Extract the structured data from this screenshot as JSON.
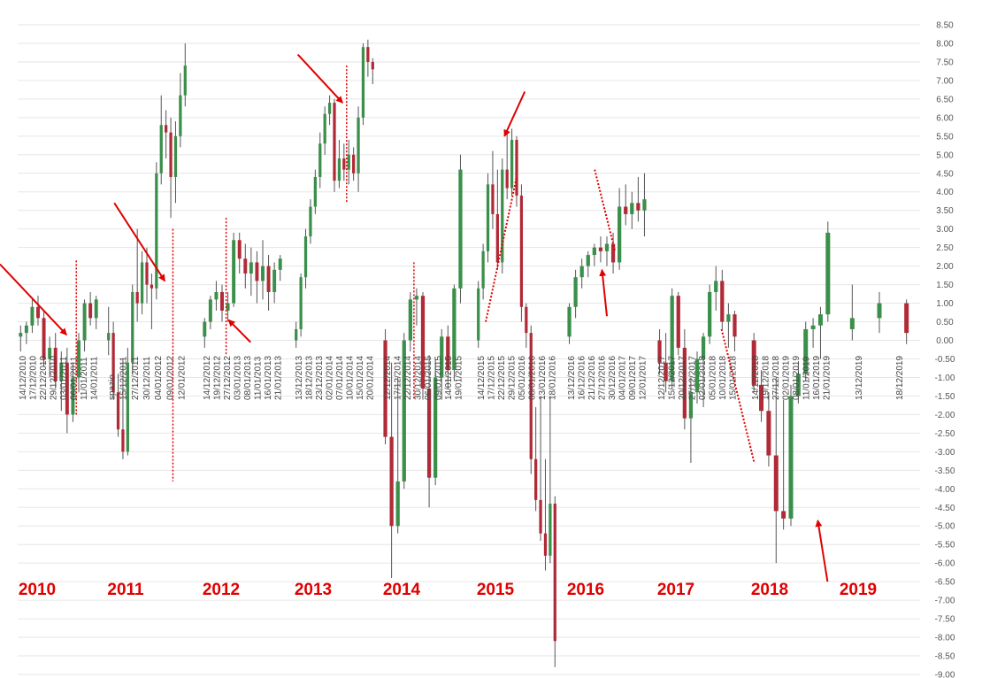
{
  "colors": {
    "up": "#3a8f4a",
    "down": "#b02a37",
    "wick": "#555555",
    "grid": "#e6e6e6",
    "annotation": "#e00000"
  },
  "chart_data": {
    "type": "candlestick",
    "ylim": [
      -9,
      8.5
    ],
    "y_step": 0.5,
    "grid": true,
    "y_axis_position": "right",
    "y_ticks": [
      "8.50",
      "8.00",
      "7.50",
      "7.00",
      "6.50",
      "6.00",
      "5.50",
      "5.00",
      "4.50",
      "4.00",
      "3.50",
      "3.00",
      "2.50",
      "2.00",
      "1.50",
      "1.00",
      "0.50",
      "0.00",
      "-0.50",
      "-1.00",
      "-1.50",
      "-2.00",
      "-2.50",
      "-3.00",
      "-3.50",
      "-4.00",
      "-4.50",
      "-5.00",
      "-5.50",
      "-6.00",
      "-6.50",
      "-7.00",
      "-7.50",
      "-8.00",
      "-8.50",
      "-9.00"
    ],
    "years": [
      {
        "label": "2010",
        "candles": [
          [
            0.1,
            0.4,
            -0.3,
            0.2
          ],
          [
            0.2,
            0.5,
            -0.1,
            0.4
          ],
          [
            0.4,
            1.1,
            0.2,
            0.9
          ],
          [
            0.9,
            1.2,
            0.4,
            0.6
          ],
          [
            0.6,
            0.8,
            -0.7,
            -0.5
          ],
          [
            -0.5,
            0.1,
            -1.0,
            -0.2
          ],
          [
            -0.2,
            0.2,
            -1.3,
            -1.1
          ],
          [
            -1.1,
            -0.3,
            -1.9,
            -0.6
          ],
          [
            -0.6,
            -0.2,
            -2.5,
            -2.0
          ],
          [
            -2.0,
            -0.6,
            -2.2,
            -1.0
          ],
          [
            -1.0,
            0.2,
            -1.4,
            0.0
          ],
          [
            0.0,
            1.1,
            -0.3,
            1.0
          ],
          [
            1.0,
            1.3,
            0.4,
            0.6
          ],
          [
            0.6,
            1.2,
            0.3,
            1.1
          ]
        ],
        "xlabels": [
          "14/12/2010",
          "17/12/2010",
          "22/12/2010",
          "29/12/2010",
          "03/01/2011",
          "06/01/2011",
          "11/01/2011",
          "14/01/2011"
        ]
      },
      {
        "label": "2011",
        "candles": [
          [
            0.0,
            0.9,
            -0.4,
            0.2
          ],
          [
            0.2,
            0.5,
            -1.6,
            -1.4
          ],
          [
            -1.4,
            -0.9,
            -2.6,
            -2.4
          ],
          [
            -2.4,
            -0.5,
            -3.2,
            -3.0
          ],
          [
            -3.0,
            -0.2,
            -3.1,
            -0.6
          ],
          [
            -0.6,
            1.5,
            -0.9,
            1.3
          ],
          [
            1.3,
            3.0,
            0.5,
            1.0
          ],
          [
            1.0,
            2.4,
            0.7,
            2.1
          ],
          [
            2.1,
            2.5,
            1.0,
            1.5
          ],
          [
            1.5,
            1.8,
            0.3,
            1.4
          ],
          [
            1.4,
            4.8,
            1.1,
            4.5
          ],
          [
            4.5,
            6.6,
            4.2,
            5.8
          ],
          [
            5.8,
            6.2,
            4.9,
            5.6
          ],
          [
            5.6,
            6.0,
            3.3,
            4.4
          ],
          [
            4.4,
            5.9,
            3.7,
            5.5
          ],
          [
            5.5,
            7.2,
            5.2,
            6.6
          ],
          [
            6.6,
            8.0,
            6.3,
            7.4
          ]
        ],
        "xlabels": [
          "spazio",
          "15/12/2011",
          "27/12/2011",
          "30/12/2011",
          "04/01/2012",
          "09/01/2012",
          "12/01/2012"
        ]
      },
      {
        "label": "2012",
        "candles": [
          [
            0.1,
            0.6,
            -0.2,
            0.5
          ],
          [
            0.5,
            1.2,
            0.3,
            1.1
          ],
          [
            1.1,
            1.6,
            0.8,
            1.3
          ],
          [
            1.3,
            1.5,
            0.5,
            0.8
          ],
          [
            0.8,
            1.3,
            0.5,
            1.0
          ],
          [
            1.0,
            2.9,
            0.9,
            2.7
          ],
          [
            2.7,
            2.9,
            1.8,
            2.2
          ],
          [
            2.2,
            2.6,
            1.4,
            1.8
          ],
          [
            1.8,
            2.5,
            1.2,
            2.1
          ],
          [
            2.1,
            2.4,
            1.0,
            1.6
          ],
          [
            1.6,
            2.7,
            1.1,
            2.0
          ],
          [
            2.0,
            2.3,
            0.8,
            1.3
          ],
          [
            1.3,
            2.1,
            1.0,
            1.9
          ],
          [
            1.9,
            2.3,
            1.6,
            2.2
          ]
        ],
        "xlabels": [
          "14/12/2012",
          "19/12/2012",
          "27/12/2012",
          "03/01/2013",
          "08/01/2013",
          "11/01/2013",
          "16/01/2013",
          "21/01/2013"
        ]
      },
      {
        "label": "2013",
        "candles": [
          [
            0.0,
            0.5,
            -0.2,
            0.3
          ],
          [
            0.3,
            1.8,
            0.1,
            1.7
          ],
          [
            1.7,
            3.0,
            1.4,
            2.8
          ],
          [
            2.8,
            3.8,
            2.6,
            3.6
          ],
          [
            3.6,
            4.6,
            3.4,
            4.4
          ],
          [
            4.4,
            5.6,
            4.1,
            5.3
          ],
          [
            5.3,
            6.3,
            5.0,
            6.1
          ],
          [
            6.1,
            6.6,
            5.8,
            6.4
          ],
          [
            6.4,
            6.5,
            4.0,
            4.3
          ],
          [
            4.3,
            5.4,
            4.1,
            4.9
          ],
          [
            4.9,
            5.3,
            4.3,
            4.6
          ],
          [
            4.6,
            5.4,
            4.2,
            5.0
          ],
          [
            5.0,
            5.2,
            4.3,
            4.5
          ],
          [
            4.5,
            6.3,
            4.0,
            6.0
          ],
          [
            6.0,
            8.0,
            5.8,
            7.9
          ],
          [
            7.9,
            8.1,
            7.1,
            7.5
          ],
          [
            7.5,
            7.6,
            6.9,
            7.3
          ]
        ],
        "xlabels": [
          "13/12/2013",
          "18/12/2013",
          "23/12/2013",
          "02/01/2014",
          "07/01/2014",
          "10/01/2014",
          "15/01/2014",
          "20/01/2014"
        ]
      },
      {
        "label": "2014",
        "candles": [
          [
            0.0,
            0.3,
            -2.8,
            -2.6
          ],
          [
            -2.6,
            -0.6,
            -6.4,
            -5.0
          ],
          [
            -5.0,
            -1.0,
            -5.2,
            -3.8
          ],
          [
            -3.8,
            0.2,
            -4.0,
            0.0
          ],
          [
            0.0,
            1.3,
            -0.3,
            1.1
          ],
          [
            1.1,
            1.4,
            0.4,
            1.2
          ],
          [
            1.2,
            1.3,
            -1.6,
            -1.3
          ],
          [
            -1.3,
            -0.4,
            -4.5,
            -3.7
          ],
          [
            -3.7,
            -0.5,
            -3.9,
            -1.0
          ],
          [
            -1.0,
            0.3,
            -1.6,
            0.1
          ],
          [
            0.1,
            0.4,
            -1.3,
            -0.8
          ],
          [
            -0.8,
            1.5,
            -1.1,
            1.4
          ],
          [
            1.4,
            5.0,
            1.0,
            4.6
          ]
        ],
        "xlabels": [
          "12/12/2014",
          "17/12/2014",
          "22/12/2014",
          "30/12/2014",
          "06/01/2015",
          "09/01/2015",
          "14/01/2015",
          "19/01/2015"
        ]
      },
      {
        "label": "2015",
        "candles": [
          [
            0.0,
            1.6,
            -0.2,
            1.4
          ],
          [
            1.4,
            2.6,
            1.1,
            2.4
          ],
          [
            2.4,
            4.5,
            2.1,
            4.2
          ],
          [
            4.2,
            5.1,
            3.0,
            3.4
          ],
          [
            3.4,
            4.6,
            1.9,
            2.1
          ],
          [
            2.1,
            4.9,
            1.8,
            4.6
          ],
          [
            4.6,
            5.6,
            3.8,
            4.1
          ],
          [
            4.1,
            5.7,
            3.9,
            5.4
          ],
          [
            5.4,
            5.5,
            3.6,
            3.9
          ],
          [
            3.9,
            4.2,
            0.5,
            0.9
          ],
          [
            0.9,
            1.0,
            -0.2,
            0.2
          ],
          [
            0.2,
            0.4,
            -3.6,
            -3.2
          ],
          [
            -3.2,
            -1.8,
            -4.6,
            -4.3
          ],
          [
            -4.3,
            -1.5,
            -5.4,
            -5.2
          ],
          [
            -5.2,
            -3.2,
            -6.2,
            -5.8
          ],
          [
            -5.8,
            -1.5,
            -6.0,
            -4.4
          ],
          [
            -4.4,
            -4.2,
            -8.8,
            -8.1
          ]
        ],
        "xlabels": [
          "14/12/2015",
          "17/12/2015",
          "22/12/2015",
          "29/12/2015",
          "05/01/2016",
          "08/01/2016",
          "13/01/2016",
          "18/01/2016"
        ]
      },
      {
        "label": "2016",
        "candles": [
          [
            0.1,
            1.0,
            -0.1,
            0.9
          ],
          [
            0.9,
            1.9,
            0.6,
            1.7
          ],
          [
            1.7,
            2.2,
            1.4,
            2.0
          ],
          [
            2.0,
            2.4,
            1.7,
            2.3
          ],
          [
            2.3,
            2.6,
            2.0,
            2.5
          ],
          [
            2.5,
            2.8,
            2.1,
            2.4
          ],
          [
            2.4,
            2.8,
            2.0,
            2.6
          ],
          [
            2.6,
            2.9,
            1.8,
            2.1
          ],
          [
            2.1,
            4.1,
            1.9,
            3.6
          ],
          [
            3.6,
            4.2,
            3.1,
            3.4
          ],
          [
            3.4,
            4.0,
            3.0,
            3.7
          ],
          [
            3.7,
            4.4,
            3.2,
            3.5
          ],
          [
            3.5,
            4.5,
            2.8,
            3.8
          ]
        ],
        "xlabels": [
          "13/12/2016",
          "16/12/2016",
          "21/12/2016",
          "27/12/2016",
          "30/12/2016",
          "04/01/2017",
          "09/01/2017",
          "12/01/2017"
        ]
      },
      {
        "label": "2017",
        "candles": [
          [
            0.0,
            0.3,
            -0.9,
            -0.6
          ],
          [
            -0.6,
            0.2,
            -1.4,
            -1.1
          ],
          [
            -1.1,
            1.4,
            -1.3,
            1.2
          ],
          [
            1.2,
            1.3,
            -0.4,
            -0.2
          ],
          [
            -0.2,
            0.3,
            -2.4,
            -2.1
          ],
          [
            -2.1,
            -1.0,
            -3.3,
            -1.4
          ],
          [
            -1.4,
            -0.3,
            -1.7,
            -0.5
          ],
          [
            -0.5,
            0.2,
            -1.8,
            0.1
          ],
          [
            0.1,
            1.5,
            -0.1,
            1.3
          ],
          [
            1.3,
            2.0,
            0.8,
            1.6
          ],
          [
            1.6,
            1.9,
            0.3,
            0.5
          ],
          [
            0.5,
            1.0,
            -0.2,
            0.7
          ],
          [
            0.7,
            0.8,
            -0.3,
            0.1
          ]
        ],
        "xlabels": [
          "12/12/2017",
          "15/12/2017",
          "20/12/2017",
          "27/12/2017",
          "02/01/2018",
          "05/01/2018",
          "10/01/2018",
          "15/01/2018"
        ]
      },
      {
        "label": "2018",
        "candles": [
          [
            0.0,
            0.2,
            -1.4,
            -1.2
          ],
          [
            -1.2,
            -0.8,
            -2.2,
            -1.9
          ],
          [
            -1.9,
            -1.4,
            -3.4,
            -3.1
          ],
          [
            -3.1,
            -1.0,
            -6.0,
            -4.6
          ],
          [
            -4.6,
            -1.6,
            -5.1,
            -4.8
          ],
          [
            -4.8,
            -1.2,
            -5.0,
            -1.5
          ],
          [
            -1.5,
            -0.6,
            -1.7,
            -0.9
          ],
          [
            -0.9,
            0.5,
            -1.1,
            0.3
          ],
          [
            0.3,
            0.6,
            -0.2,
            0.4
          ],
          [
            0.4,
            0.9,
            -0.5,
            0.7
          ],
          [
            0.7,
            3.2,
            0.5,
            2.9
          ]
        ],
        "xlabels": [
          "14/12/2018",
          "19/12/2018",
          "27/12/2018",
          "02/01/2019",
          "08/01/2019",
          "11/01/2019",
          "16/01/2019",
          "21/01/2019"
        ]
      },
      {
        "label": "2019",
        "candles": [
          [
            0.3,
            1.5,
            0.0,
            0.6
          ],
          [
            0.6,
            1.3,
            0.2,
            1.0
          ],
          [
            1.0,
            1.1,
            -0.1,
            0.2
          ]
        ],
        "xlabels": [
          "13/12/2019",
          "18/12/2019"
        ]
      }
    ],
    "annotations": [
      {
        "kind": "arrow",
        "from": [
          -0.2,
          2.05
        ],
        "to": [
          0.6,
          0.15
        ]
      },
      {
        "kind": "vline",
        "x": 0.72,
        "y1": 2.15,
        "y2": -2.0
      },
      {
        "kind": "arrow",
        "from": [
          1.1,
          3.7
        ],
        "to": [
          1.72,
          1.6
        ]
      },
      {
        "kind": "vline",
        "x": 1.82,
        "y1": 3.0,
        "y2": -3.8
      },
      {
        "kind": "arrow",
        "from": [
          2.6,
          -0.05
        ],
        "to": [
          2.33,
          0.55
        ]
      },
      {
        "kind": "vline",
        "x": 2.3,
        "y1": 3.3,
        "y2": -0.4
      },
      {
        "kind": "arrow",
        "from": [
          3.05,
          7.7
        ],
        "to": [
          3.6,
          6.4
        ]
      },
      {
        "kind": "vline",
        "x": 3.65,
        "y1": 7.4,
        "y2": 3.7
      },
      {
        "kind": "vline",
        "x": 4.39,
        "y1": 2.1,
        "y2": -1.6
      },
      {
        "kind": "arrow",
        "from": [
          5.6,
          6.7
        ],
        "to": [
          5.35,
          5.5
        ]
      },
      {
        "kind": "dline",
        "from": [
          5.12,
          0.5
        ],
        "to": [
          5.5,
          4.4
        ]
      },
      {
        "kind": "dline",
        "from": [
          6.35,
          4.6
        ],
        "to": [
          6.6,
          2.4
        ]
      },
      {
        "kind": "arrow",
        "from": [
          6.5,
          0.65
        ],
        "to": [
          6.44,
          1.9
        ]
      },
      {
        "kind": "dline",
        "from": [
          7.8,
          0.3
        ],
        "to": [
          8.05,
          -3.3
        ]
      },
      {
        "kind": "arrow",
        "from": [
          8.95,
          -6.5
        ],
        "to": [
          8.83,
          -4.85
        ]
      }
    ]
  }
}
